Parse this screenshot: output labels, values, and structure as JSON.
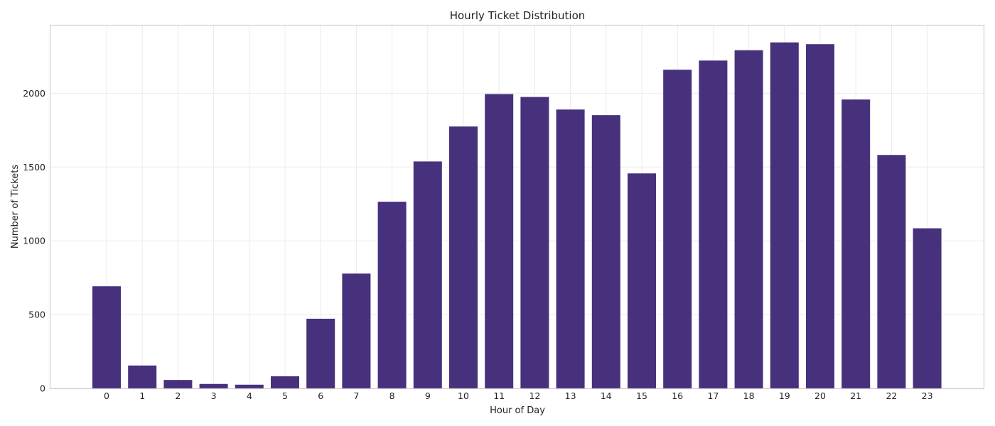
{
  "chart_data": {
    "type": "bar",
    "title": "Hourly Ticket Distribution",
    "xlabel": "Hour of Day",
    "ylabel": "Number of Tickets",
    "categories": [
      "0",
      "1",
      "2",
      "3",
      "4",
      "5",
      "6",
      "7",
      "8",
      "9",
      "10",
      "11",
      "12",
      "13",
      "14",
      "15",
      "16",
      "17",
      "18",
      "19",
      "20",
      "21",
      "22",
      "23"
    ],
    "values": [
      692,
      155,
      57,
      30,
      25,
      82,
      472,
      778,
      1265,
      1538,
      1775,
      1995,
      1975,
      1890,
      1852,
      1457,
      2160,
      2222,
      2292,
      2345,
      2333,
      1958,
      1582,
      1085
    ],
    "ylim": [
      0,
      2464
    ],
    "yticks": [
      0,
      500,
      1000,
      1500,
      2000
    ],
    "grid": true,
    "bar_color": "#47317d"
  }
}
